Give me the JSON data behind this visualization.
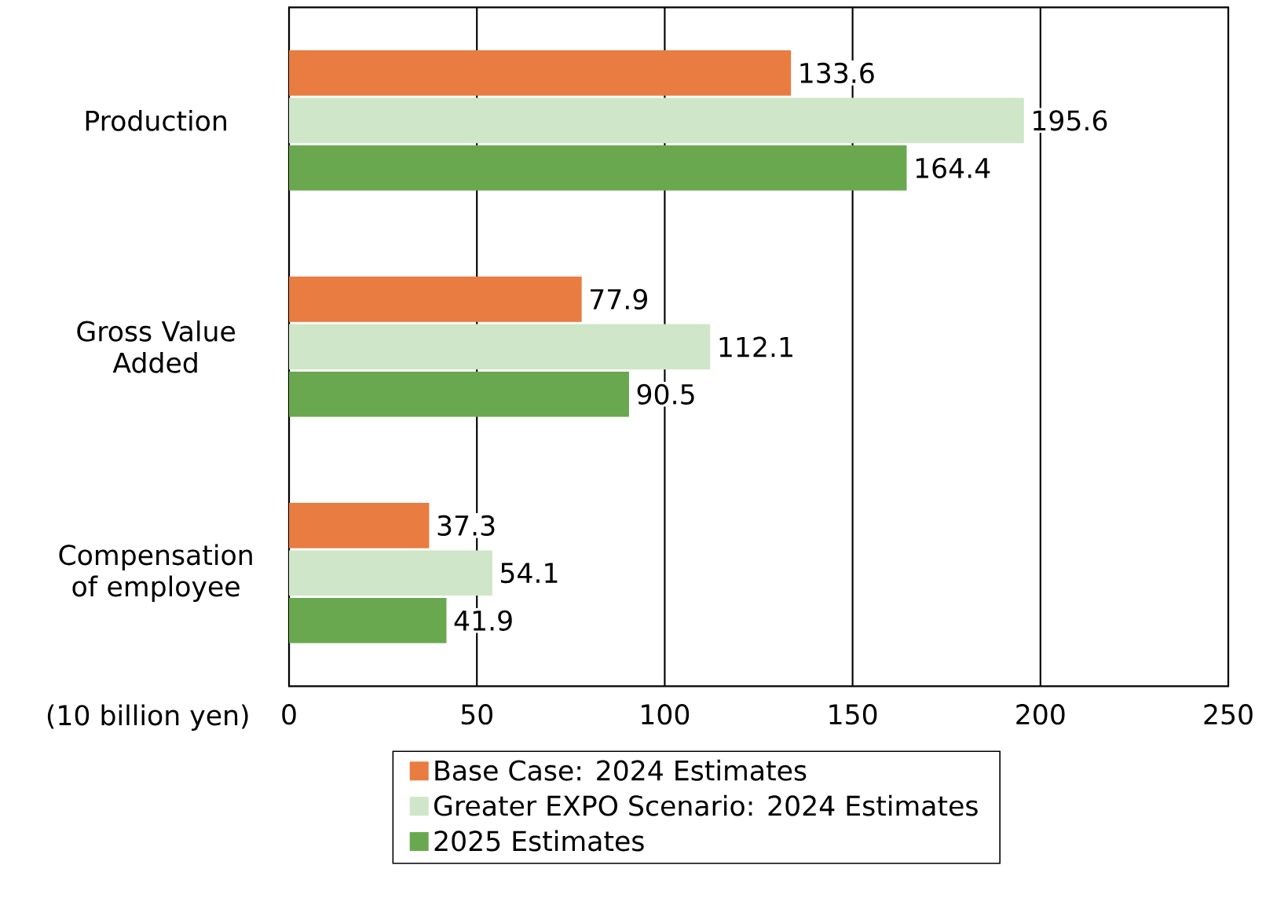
{
  "chart_data": {
    "type": "bar",
    "orientation": "horizontal",
    "categories": [
      "Production",
      "Gross Value Added",
      "Compensation of employee"
    ],
    "series": [
      {
        "name": "Base Case: 2024 Estimates",
        "color": "#e97c41",
        "values": [
          133.6,
          77.9,
          37.3
        ]
      },
      {
        "name": "Greater EXPO Scenario: 2024 Estimates",
        "color": "#cfe6c8",
        "values": [
          195.6,
          112.1,
          54.1
        ]
      },
      {
        "name": "2025 Estimates",
        "color": "#6aa84f",
        "values": [
          164.4,
          90.5,
          41.9
        ]
      }
    ],
    "xlabel": "(10 billion yen)",
    "xlim": [
      0,
      250
    ],
    "xticks": [
      0,
      50,
      100,
      150,
      200,
      250
    ],
    "grid": "x",
    "legend": "bottom",
    "data_labels": true
  }
}
